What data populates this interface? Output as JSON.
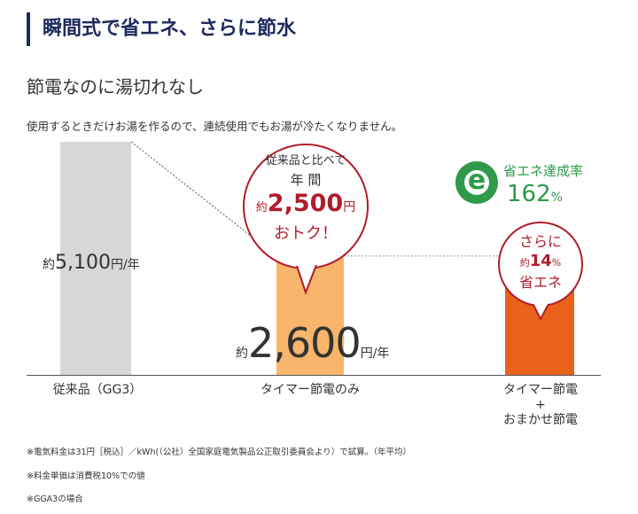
{
  "header": {
    "title": "瞬間式で省エネ、さらに節水",
    "subtitle": "節電なのに湯切れなし",
    "description": "使用するときだけお湯を作るので、連続使用でもお湯が冷たくなりません。"
  },
  "chart_data": {
    "type": "bar",
    "categories": [
      "従来品（GG3）",
      "タイマー節電のみ",
      "タイマー節電\n+\nおまかせ節電"
    ],
    "values": [
      5100,
      2600,
      2236
    ],
    "unit": "円/年",
    "ylim": [
      0,
      5100
    ],
    "colors": [
      "#d6d7d9",
      "#f8b56b",
      "#e8621a"
    ],
    "saved_segment_color": "#ececec",
    "bar1_label": {
      "approx": "約",
      "value": "5,100",
      "unit": "円/年"
    },
    "bar2_label": {
      "approx": "約",
      "value": "2,600",
      "unit": "円/年"
    }
  },
  "bubble1": {
    "line1": "従来品と比べて",
    "line2": "年 間",
    "approx": "約",
    "amount": "2,500",
    "yen": "円",
    "line4": "おトク！"
  },
  "bubble2": {
    "line1": "さらに",
    "approx": "約",
    "pct": "14",
    "pct_sign": "%",
    "line3": "省エネ"
  },
  "eco_badge": {
    "icon_letter": "e",
    "label": "省エネ達成率",
    "value": "162",
    "sign": "%"
  },
  "labels": {
    "cat1": "従来品（GG3）",
    "cat2": "タイマー節電のみ",
    "cat3_line1": "タイマー節電",
    "cat3_line2": "+",
    "cat3_line3": "おまかせ節電"
  },
  "notes": [
    "※電気料金は31円［税込］／kWh(（公社）全国家庭電気製品公正取引委員会より）で試算。（年平均）",
    "※料金単価は消費税10%での値",
    "※GGA3の場合"
  ]
}
